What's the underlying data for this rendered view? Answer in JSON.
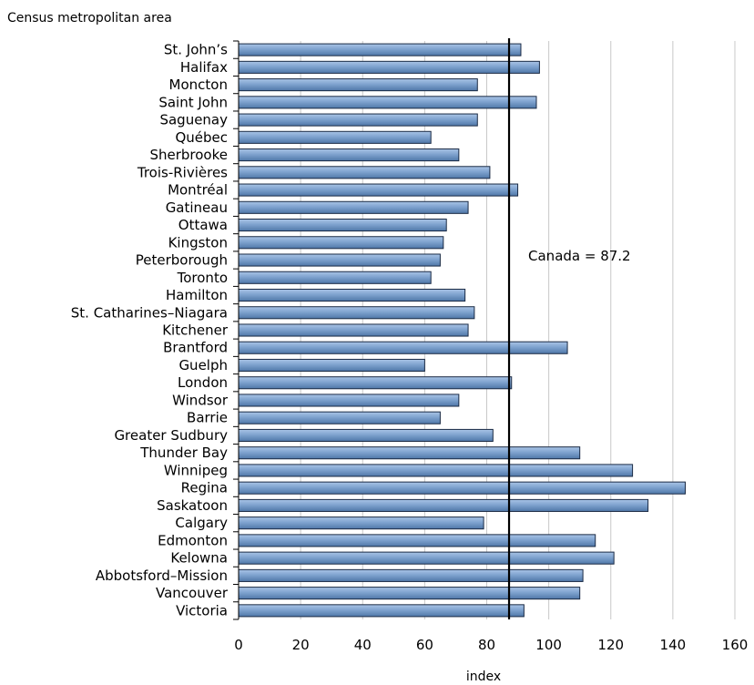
{
  "chart_data": {
    "type": "bar",
    "orientation": "horizontal",
    "title": "",
    "y_axis_title": "Census metropolitan area",
    "xlabel": "index",
    "xlim": [
      0,
      160
    ],
    "x_ticks": [
      "0",
      "20",
      "40",
      "60",
      "80",
      "100",
      "120",
      "140",
      "160"
    ],
    "grid": "vertical",
    "categories": [
      "St. John’s",
      "Halifax",
      "Moncton",
      "Saint John",
      "Saguenay",
      "Québec",
      "Sherbrooke",
      "Trois-Rivières",
      "Montréal",
      "Gatineau",
      "Ottawa",
      "Kingston",
      "Peterborough",
      "Toronto",
      "Hamilton",
      "St. Catharines–Niagara",
      "Kitchener",
      "Brantford",
      "Guelph",
      "London",
      "Windsor",
      "Barrie",
      "Greater Sudbury",
      "Thunder Bay",
      "Winnipeg",
      "Regina",
      "Saskatoon",
      "Calgary",
      "Edmonton",
      "Kelowna",
      "Abbotsford–Mission",
      "Vancouver",
      "Victoria"
    ],
    "values": [
      91,
      97,
      77,
      96,
      77,
      62,
      71,
      81,
      90,
      74,
      67,
      66,
      65,
      62,
      73,
      76,
      74,
      106,
      60,
      88,
      71,
      65,
      82,
      110,
      127,
      144,
      132,
      79,
      115,
      121,
      111,
      110,
      92
    ],
    "reference_line": {
      "value": 87.2,
      "label": "Canada = 87.2"
    },
    "colors": {
      "bar": "#7fa3cf",
      "bar_edge": "#1a2a44",
      "grid": "#c8c8c8",
      "reference": "#000000"
    }
  }
}
